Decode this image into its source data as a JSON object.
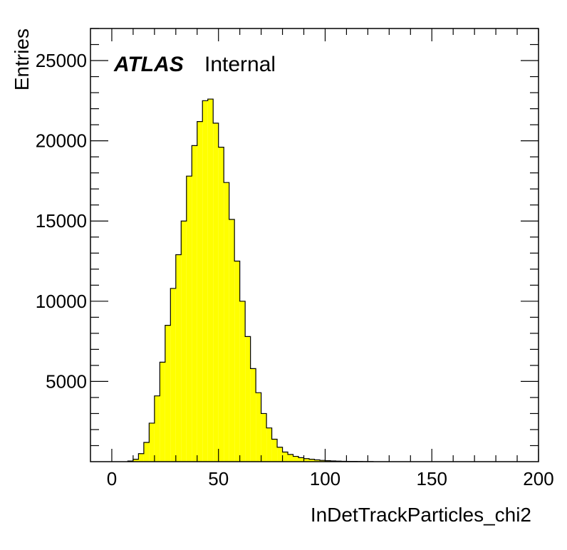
{
  "chart_data": {
    "type": "bar",
    "histogram": true,
    "xlabel": "InDetTrackParticles_chi2",
    "ylabel": "Entries",
    "label_bold": "ATLAS",
    "label_status": "Internal",
    "xlim": [
      -10,
      200
    ],
    "ylim": [
      0,
      27000
    ],
    "x_ticks": [
      0,
      50,
      100,
      150,
      200
    ],
    "y_ticks": [
      5000,
      10000,
      15000,
      20000,
      25000
    ],
    "bin_width": 2.5,
    "bin_edges_start": 7.5,
    "values": [
      40,
      150,
      500,
      1200,
      2400,
      4100,
      6200,
      8500,
      10800,
      12900,
      15000,
      17800,
      19700,
      21200,
      22500,
      22600,
      21100,
      19600,
      17400,
      15100,
      12500,
      10000,
      7800,
      5800,
      4300,
      3000,
      2100,
      1400,
      900,
      600,
      450,
      330,
      250,
      190,
      150,
      110,
      80,
      60,
      45,
      35,
      25,
      20,
      15,
      10,
      8,
      5
    ],
    "fill_color": "#ffff00",
    "line_color": "#000000",
    "grid": false
  }
}
